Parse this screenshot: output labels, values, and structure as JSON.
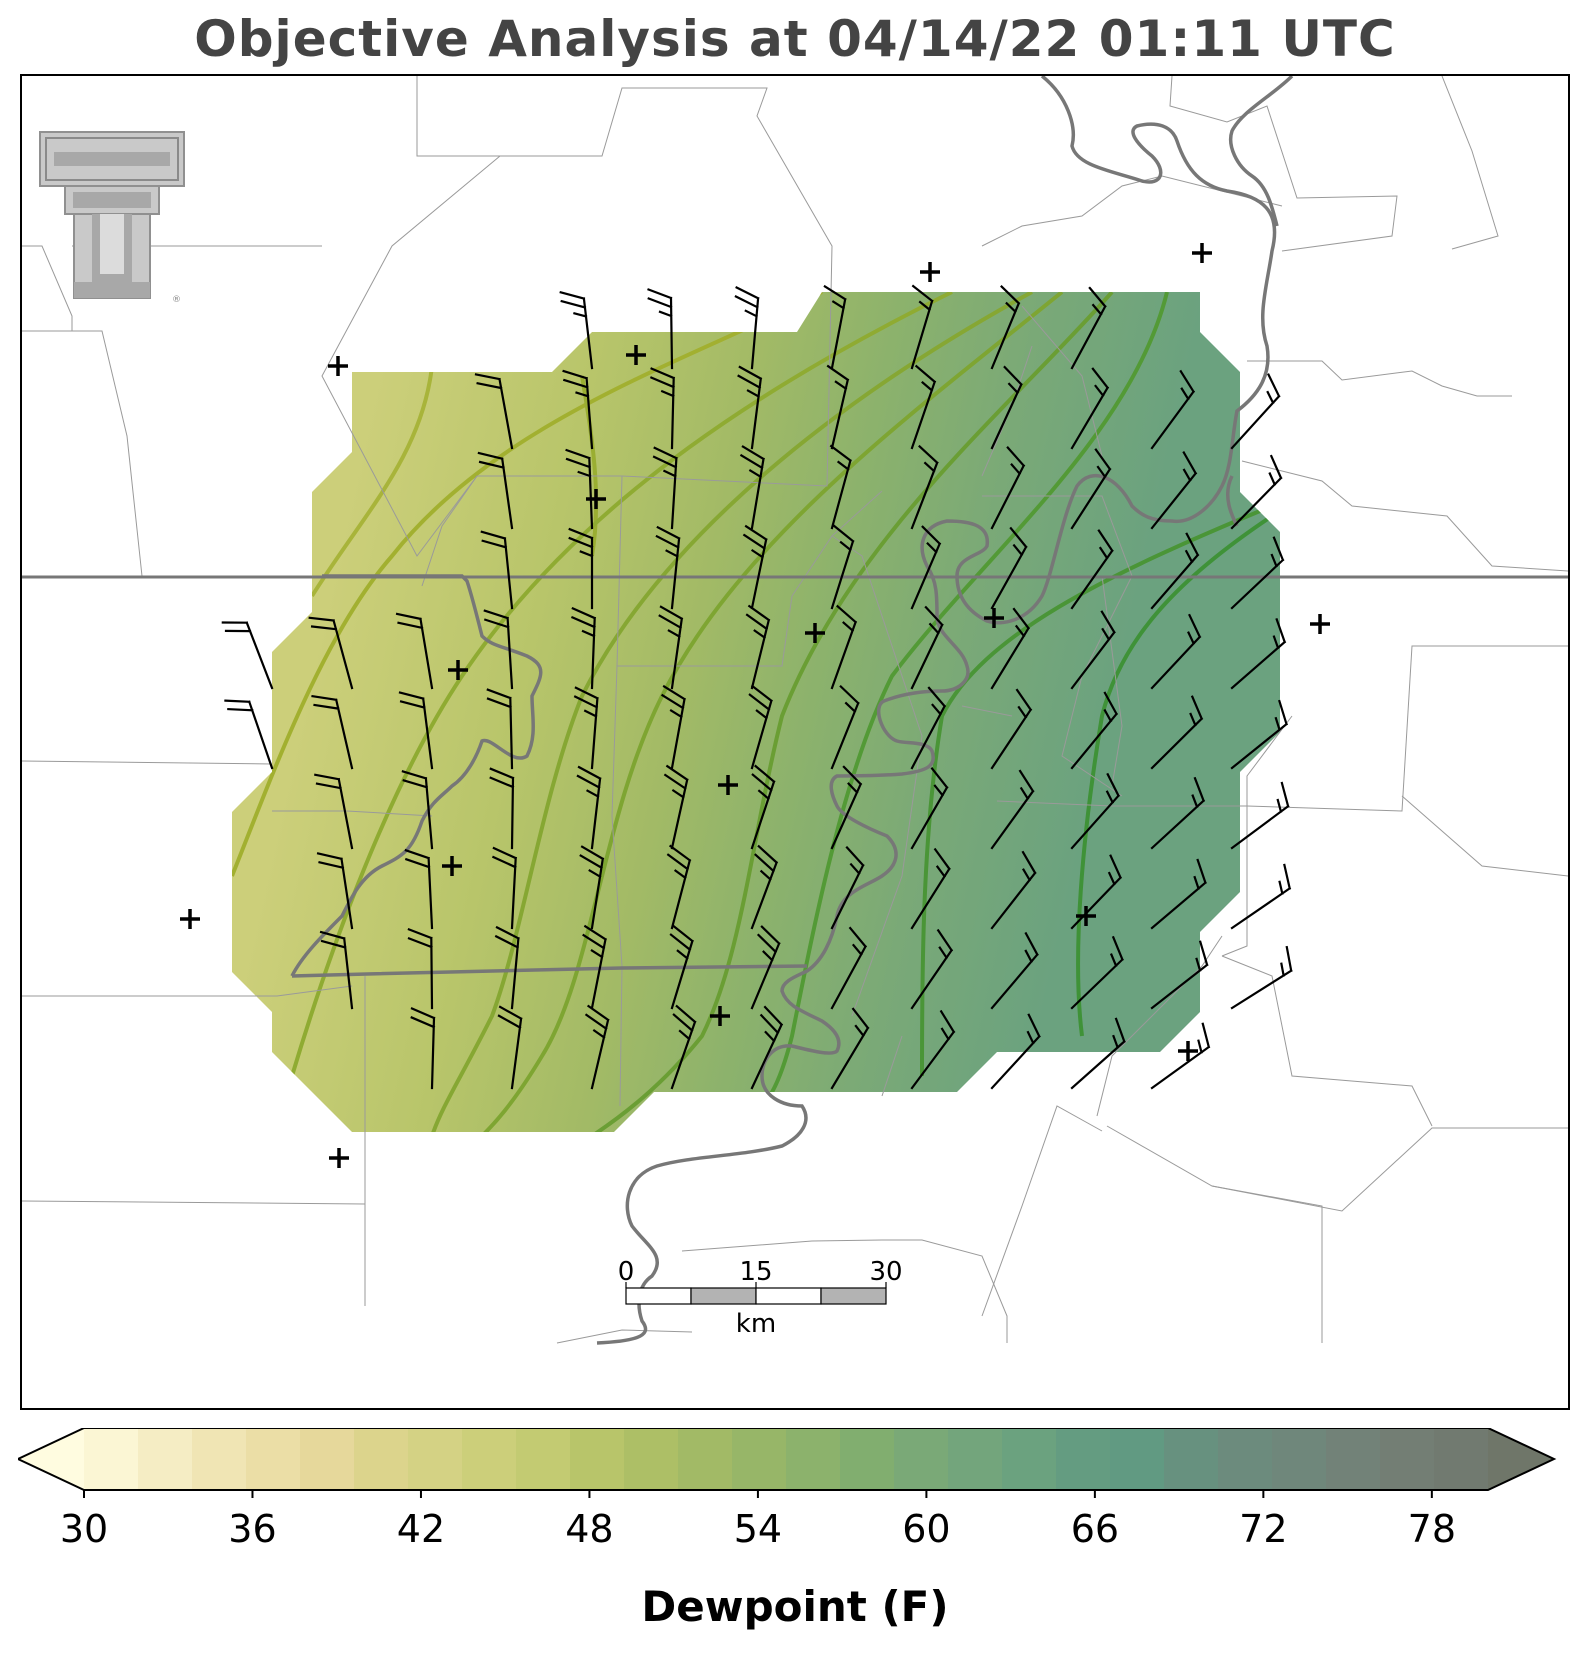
{
  "title": "Objective Analysis at 04/14/22 01:11 UTC",
  "logo": {
    "name": "texas-tech-double-t-logo",
    "registered_mark": "®"
  },
  "colorbar": {
    "label": "Dewpoint (F)",
    "min": 30,
    "max": 80,
    "step": 2,
    "ticks": [
      "30",
      "36",
      "42",
      "48",
      "54",
      "60",
      "66",
      "72",
      "78"
    ],
    "extend": "both",
    "colors": [
      "#fffce0",
      "#fbf6d4",
      "#f5edc4",
      "#f0e5b4",
      "#ebdea6",
      "#e6d89b",
      "#dcd48c",
      "#d4d284",
      "#cccf7a",
      "#c3cb72",
      "#b8c56a",
      "#adbf66",
      "#a2ba66",
      "#97b668",
      "#8cb26c",
      "#81ae6f",
      "#7aa977",
      "#73a57c",
      "#6ba27f",
      "#649c81",
      "#619a82",
      "#67917f",
      "#6c8b7d",
      "#6f877b",
      "#728278",
      "#737e74",
      "#717a70",
      "#6f7669"
    ]
  },
  "scalebar": {
    "ticks": [
      "0",
      "15",
      "30"
    ],
    "unit": "km"
  },
  "contour_colors": [
    "#a2b030",
    "#8fab32",
    "#7ea532",
    "#6a9e34",
    "#539a36",
    "#3f9238"
  ],
  "barb_color": "#000000",
  "station_marker": "+"
}
